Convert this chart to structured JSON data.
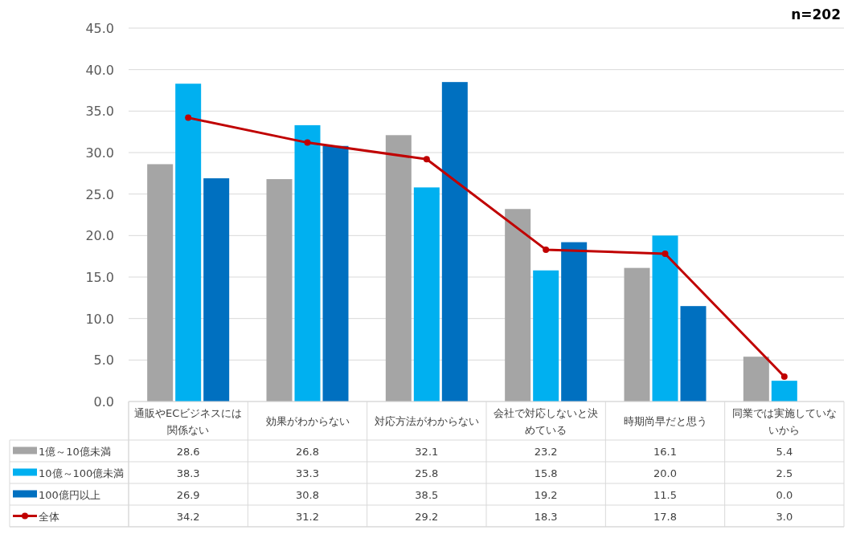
{
  "chart_data": {
    "type": "bar",
    "annotations": [
      "n=202"
    ],
    "categories": [
      "通販やECビジネスには関係ない",
      "効果がわからない",
      "対応方法がわからない",
      "会社で対応しないと決めている",
      "時期尚早だと思う",
      "同業では実施していないから"
    ],
    "series": [
      {
        "name": "1億～10億未満",
        "color": "#a5a5a5",
        "values": [
          28.6,
          26.8,
          32.1,
          23.2,
          16.1,
          5.4
        ],
        "value_labels": [
          "28.6",
          "26.8",
          "32.1",
          "23.2",
          "16.1",
          "5.4"
        ]
      },
      {
        "name": "10億～100億未満",
        "color": "#00b0f0",
        "values": [
          38.3,
          33.3,
          25.8,
          15.8,
          20.0,
          2.5
        ],
        "value_labels": [
          "38.3",
          "33.3",
          "25.8",
          "15.8",
          "20.0",
          "2.5"
        ]
      },
      {
        "name": "100億円以上",
        "color": "#0070c0",
        "values": [
          26.9,
          30.8,
          38.5,
          19.2,
          11.5,
          0.0
        ],
        "value_labels": [
          "26.9",
          "30.8",
          "38.5",
          "19.2",
          "11.5",
          "0.0"
        ]
      },
      {
        "name": "全体",
        "color": "#c00000",
        "type": "line",
        "marker": "circle",
        "values": [
          34.2,
          31.2,
          29.2,
          18.3,
          17.8,
          3.0
        ],
        "value_labels": [
          "34.2",
          "31.2",
          "29.2",
          "18.3",
          "17.8",
          "3.0"
        ]
      }
    ],
    "ylim": [
      0,
      45
    ],
    "yticks": [
      {
        "value": 0,
        "label": "0.0"
      },
      {
        "value": 5,
        "label": "5.0"
      },
      {
        "value": 10,
        "label": "10.0"
      },
      {
        "value": 15,
        "label": "15.0"
      },
      {
        "value": 20,
        "label": "20.0"
      },
      {
        "value": 25,
        "label": "25.0"
      },
      {
        "value": 30,
        "label": "30.0"
      },
      {
        "value": 35,
        "label": "35.0"
      },
      {
        "value": 40,
        "label": "40.0"
      },
      {
        "value": 45,
        "label": "45.0"
      }
    ],
    "grid": "y",
    "legend": "bottom"
  }
}
